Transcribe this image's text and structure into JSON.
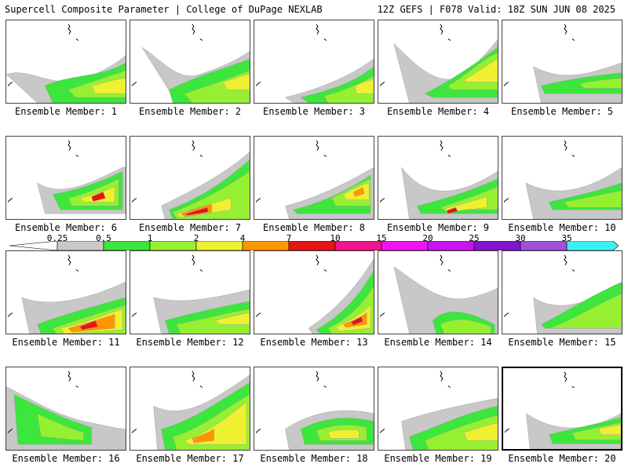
{
  "header": {
    "title": "Supercell Composite Parameter | College of DuPage NEXLAB",
    "run_info": "12Z GEFS | F078 Valid: 18Z SUN JUN 08 2025"
  },
  "colorbar": {
    "labels": [
      "0.25",
      "0.5",
      "1",
      "2",
      "4",
      "7",
      "10",
      "15",
      "20",
      "25",
      "30",
      "35"
    ],
    "colors": [
      "#c8c8c8",
      "#3ce63c",
      "#96f032",
      "#f0f032",
      "#ff9600",
      "#e61414",
      "#f0148c",
      "#f014f0",
      "#c814f0",
      "#8214d2",
      "#a050dc",
      "#3cf0f0"
    ]
  },
  "members": [
    {
      "label": "Ensemble Member: 1"
    },
    {
      "label": "Ensemble Member: 2"
    },
    {
      "label": "Ensemble Member: 3"
    },
    {
      "label": "Ensemble Member: 4"
    },
    {
      "label": "Ensemble Member: 5"
    },
    {
      "label": "Ensemble Member: 6"
    },
    {
      "label": "Ensemble Member: 7"
    },
    {
      "label": "Ensemble Member: 8"
    },
    {
      "label": "Ensemble Member: 9"
    },
    {
      "label": "Ensemble Member: 10"
    },
    {
      "label": "Ensemble Member: 11"
    },
    {
      "label": "Ensemble Member: 12"
    },
    {
      "label": "Ensemble Member: 13"
    },
    {
      "label": "Ensemble Member: 14"
    },
    {
      "label": "Ensemble Member: 15"
    },
    {
      "label": "Ensemble Member: 16"
    },
    {
      "label": "Ensemble Member: 17"
    },
    {
      "label": "Ensemble Member: 18"
    },
    {
      "label": "Ensemble Member: 19"
    },
    {
      "label": "Ensemble Member: 20"
    }
  ],
  "selected_member": 20
}
